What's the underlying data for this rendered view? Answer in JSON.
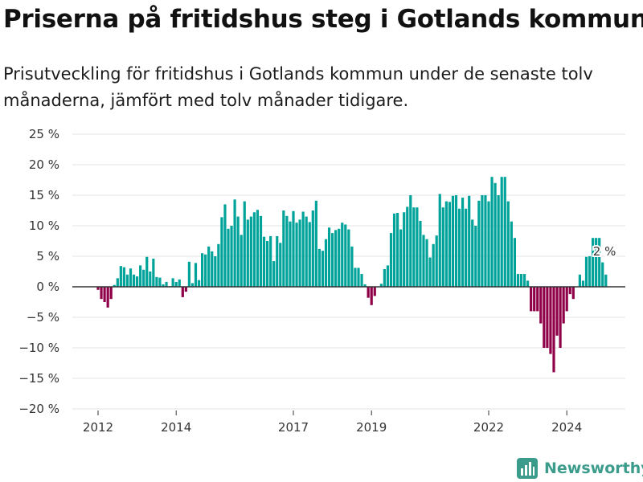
{
  "title": "Priserna på fritidshus steg i Gotlands kommun",
  "subtitle": "Prisutveckling för fritidshus i Gotlands kommun under de senaste tolv månaderna, jämfört med tolv månader tidigare.",
  "brand": {
    "name": "Newsworthy",
    "icon": "bar-chart-logo-icon"
  },
  "colors": {
    "positive": "#00a39a",
    "negative": "#8f0048",
    "zero_line": "#333333",
    "grid": "#e3e3e3"
  },
  "chart_data": {
    "type": "bar",
    "x_unit": "month",
    "x_start": "2012-01",
    "ylim": [
      -20,
      25
    ],
    "yticks": [
      25,
      20,
      15,
      10,
      5,
      0,
      -5,
      -10,
      -15,
      -20
    ],
    "ytick_labels": [
      "25 %",
      "20 %",
      "15 %",
      "10 %",
      "5 %",
      "0 %",
      "−5 %",
      "−10 %",
      "−15 %",
      "−20 %"
    ],
    "xticks": [
      "2012",
      "2014",
      "2017",
      "2019",
      "2022",
      "2024"
    ],
    "grid": true,
    "last_value_label": "2 %",
    "values": [
      -0.5,
      -2,
      -2.5,
      -3.4,
      -2,
      0.3,
      1.4,
      3.4,
      3.2,
      2,
      3,
      2,
      1.7,
      3.5,
      2.8,
      4.9,
      2.5,
      4.6,
      1.6,
      1.5,
      0.4,
      0.8,
      0.1,
      1.4,
      0.8,
      1.2,
      -1.7,
      -0.8,
      4.1,
      0.6,
      3.9,
      1.1,
      5.5,
      5.3,
      6.6,
      5.8,
      5,
      7,
      11.4,
      13.5,
      9.5,
      10,
      14.3,
      11.5,
      8.5,
      14,
      11,
      11.5,
      12.2,
      12.6,
      11.6,
      8.2,
      7.5,
      8.3,
      4.2,
      8.3,
      7.2,
      12.5,
      11.6,
      10.7,
      12.4,
      10.5,
      11,
      12.3,
      11.5,
      10.6,
      12.5,
      14.1,
      6.2,
      5.9,
      7.8,
      9.7,
      8.8,
      9.3,
      9.5,
      10.5,
      10.2,
      9.4,
      6.6,
      3.1,
      3.1,
      2.1,
      0.4,
      -1.8,
      -3,
      -1.5,
      0,
      0.5,
      2.9,
      3.5,
      8.8,
      12,
      12.1,
      9.4,
      12.2,
      13.1,
      15,
      13,
      13,
      10.8,
      8.5,
      7.8,
      4.8,
      7,
      8.4,
      15.2,
      13,
      14,
      13.9,
      14.9,
      15,
      12.8,
      14.6,
      12.8,
      14.9,
      11,
      10,
      14.1,
      15,
      15,
      14,
      18,
      17,
      15,
      18,
      18,
      14,
      10.7,
      8,
      2.1,
      2.1,
      2.1,
      1,
      -4,
      -4,
      -4,
      -6,
      -10,
      -10,
      -11,
      -14,
      -8,
      -10,
      -6,
      -4,
      -1.2,
      -2,
      0,
      2,
      1,
      4.9,
      5,
      8,
      8,
      8,
      4,
      2
    ]
  }
}
